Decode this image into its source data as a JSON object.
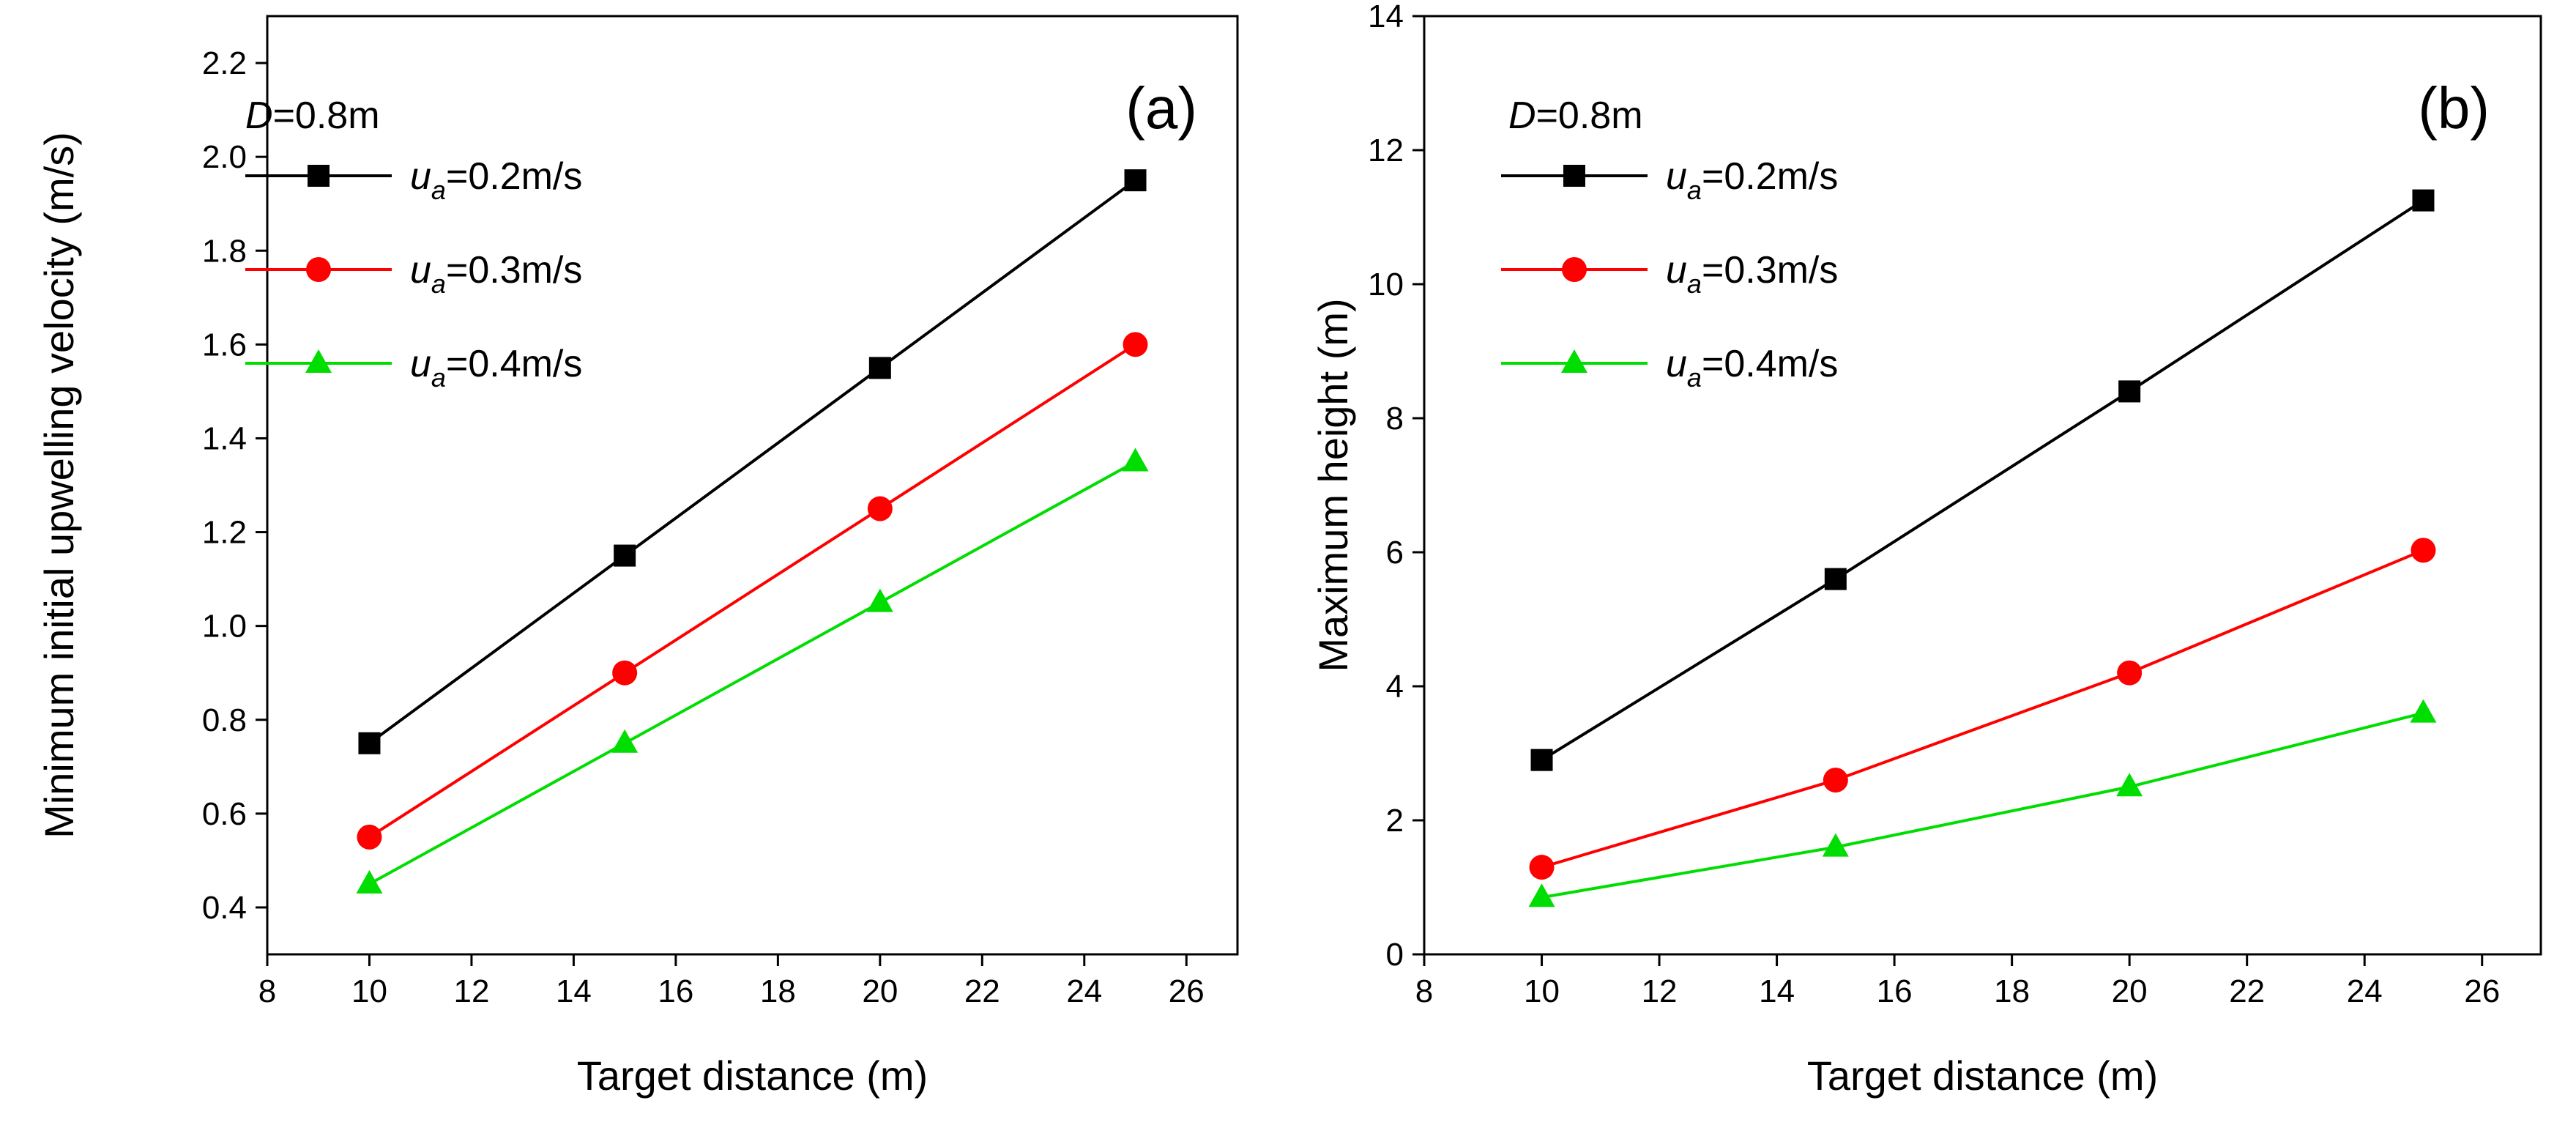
{
  "chart_data": [
    {
      "type": "line",
      "panel_label": "(a)",
      "annotation": {
        "prefix": "D",
        "suffix": "=0.8m"
      },
      "xlabel": "Target distance (m)",
      "ylabel": "Minimum initial upwelling velocity (m/s)",
      "xlim": [
        8,
        27
      ],
      "ylim": [
        0.3,
        2.3
      ],
      "xticks": [
        8,
        10,
        12,
        14,
        16,
        18,
        20,
        22,
        24,
        26
      ],
      "yticks": [
        0.4,
        0.6,
        0.8,
        1.0,
        1.2,
        1.4,
        1.6,
        1.8,
        2.0,
        2.2
      ],
      "ytick_labels": [
        "0.4",
        "0.6",
        "0.8",
        "1.0",
        "1.2",
        "1.4",
        "1.6",
        "1.8",
        "2.0",
        "2.2"
      ],
      "x": [
        10,
        15,
        20,
        25
      ],
      "grid": false,
      "legend_position": "top-left",
      "series": [
        {
          "name_base": "u",
          "name_sub": "a",
          "name_rest": "=0.2m/s",
          "color": "#000000",
          "marker": "square",
          "values": [
            0.75,
            1.15,
            1.55,
            1.95
          ]
        },
        {
          "name_base": "u",
          "name_sub": "a",
          "name_rest": "=0.3m/s",
          "color": "#ff0000",
          "marker": "circle",
          "values": [
            0.55,
            0.9,
            1.25,
            1.6
          ]
        },
        {
          "name_base": "u",
          "name_sub": "a",
          "name_rest": "=0.4m/s",
          "color": "#00dd00",
          "marker": "triangle",
          "values": [
            0.45,
            0.75,
            1.05,
            1.35
          ]
        }
      ]
    },
    {
      "type": "line",
      "panel_label": "(b)",
      "annotation": {
        "prefix": "D",
        "suffix": "=0.8m"
      },
      "xlabel": "Target distance (m)",
      "ylabel": "Maximum height (m)",
      "xlim": [
        8,
        27
      ],
      "ylim": [
        0,
        14
      ],
      "xticks": [
        8,
        10,
        12,
        14,
        16,
        18,
        20,
        22,
        24,
        26
      ],
      "yticks": [
        0,
        2,
        4,
        6,
        8,
        10,
        12,
        14
      ],
      "ytick_labels": [
        "0",
        "2",
        "4",
        "6",
        "8",
        "10",
        "12",
        "14"
      ],
      "x": [
        10,
        15,
        20,
        25
      ],
      "grid": false,
      "legend_position": "top-left",
      "series": [
        {
          "name_base": "u",
          "name_sub": "a",
          "name_rest": "=0.2m/s",
          "color": "#000000",
          "marker": "square",
          "values": [
            2.9,
            5.6,
            8.4,
            11.25
          ]
        },
        {
          "name_base": "u",
          "name_sub": "a",
          "name_rest": "=0.3m/s",
          "color": "#ff0000",
          "marker": "circle",
          "values": [
            1.3,
            2.6,
            4.2,
            6.03
          ]
        },
        {
          "name_base": "u",
          "name_sub": "a",
          "name_rest": "=0.4m/s",
          "color": "#00dd00",
          "marker": "triangle",
          "values": [
            0.85,
            1.6,
            2.5,
            3.6
          ]
        }
      ]
    }
  ]
}
